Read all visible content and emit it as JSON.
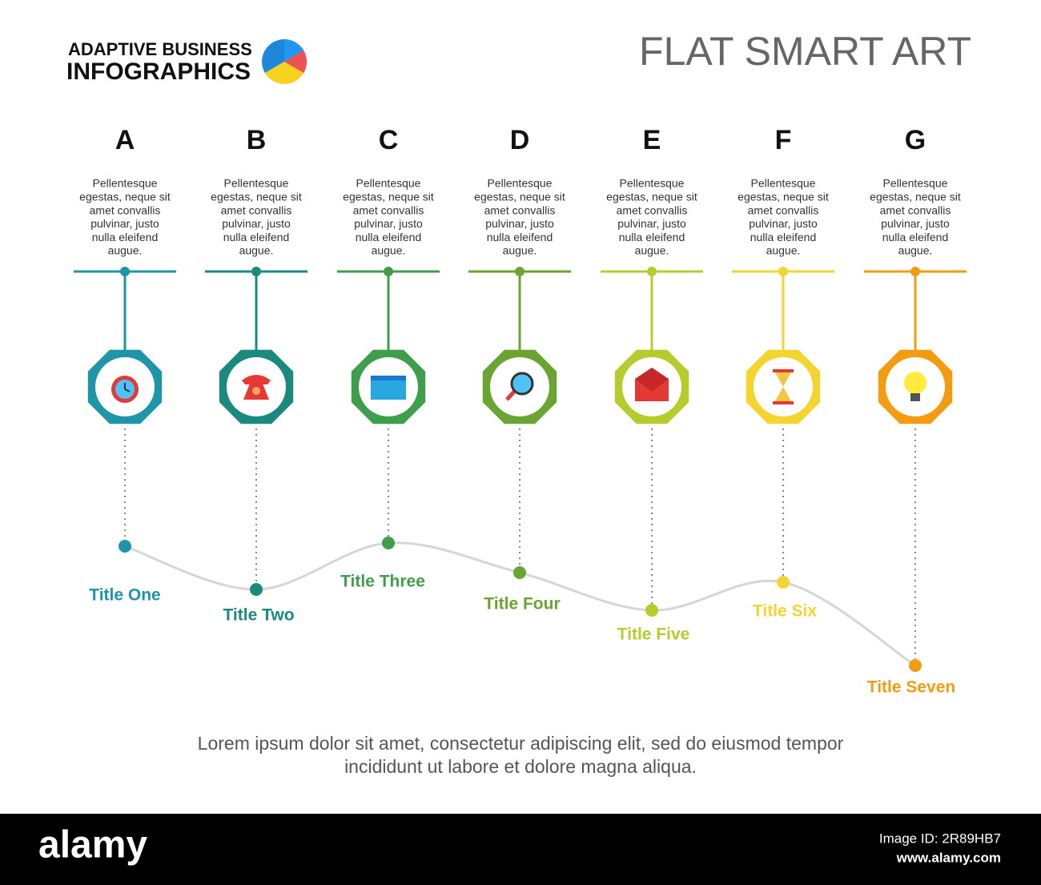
{
  "header": {
    "brand_line1": "ADAPTIVE BUSINESS",
    "brand_line2": "INFOGRAPHICS",
    "title": "FLAT SMART ART"
  },
  "steps": [
    {
      "letter": "A",
      "lines": [
        "Pellentesque",
        "egestas, neque sit",
        "amet convallis",
        "pulvinar, justo",
        "nulla eleifend",
        "augue."
      ],
      "title": "Title One"
    },
    {
      "letter": "B",
      "lines": [
        "Pellentesque",
        "egestas, neque sit",
        "amet convallis",
        "pulvinar, justo",
        "nulla eleifend",
        "augue."
      ],
      "title": "Title Two"
    },
    {
      "letter": "C",
      "lines": [
        "Pellentesque",
        "egestas, neque sit",
        "amet convallis",
        "pulvinar, justo",
        "nulla eleifend",
        "augue."
      ],
      "title": "Title Three"
    },
    {
      "letter": "D",
      "lines": [
        "Pellentesque",
        "egestas, neque sit",
        "amet convallis",
        "pulvinar, justo",
        "nulla eleifend",
        "augue."
      ],
      "title": "Title Four"
    },
    {
      "letter": "E",
      "lines": [
        "Pellentesque",
        "egestas, neque sit",
        "amet convallis",
        "pulvinar, justo",
        "nulla eleifend",
        "augue."
      ],
      "title": "Title Five"
    },
    {
      "letter": "F",
      "lines": [
        "Pellentesque",
        "egestas, neque sit",
        "amet convallis",
        "pulvinar, justo",
        "nulla eleifend",
        "augue."
      ],
      "title": "Title Six"
    },
    {
      "letter": "G",
      "lines": [
        "Pellentesque",
        "egestas, neque sit",
        "amet convallis",
        "pulvinar, justo",
        "nulla eleifend",
        "augue."
      ],
      "title": "Title Seven"
    }
  ],
  "footer": {
    "lines": [
      "Lorem ipsum dolor sit amet, consectetur adipiscing elit, sed do eiusmod tempor",
      "incididunt ut labore et dolore magna aliqua."
    ]
  },
  "watermark": {
    "logo": "alamy",
    "image_id": "Image ID: 2R89HB7",
    "url": "www.alamy.com"
  }
}
